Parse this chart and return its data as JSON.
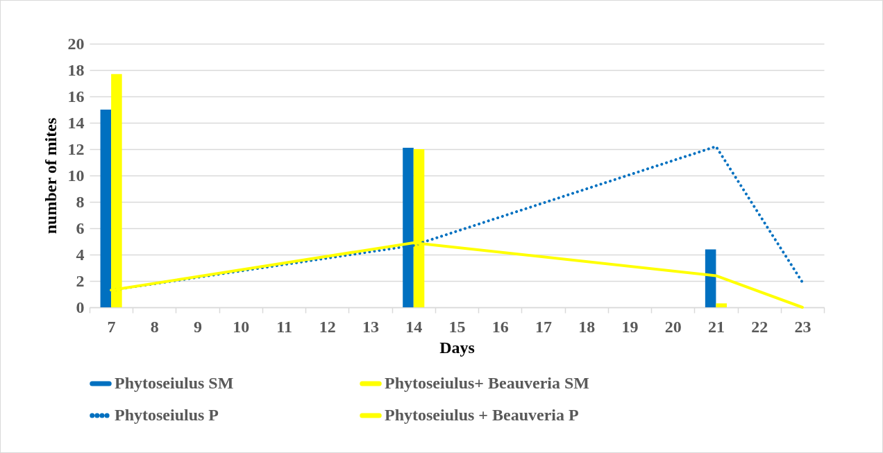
{
  "chart_data": {
    "type": "bar",
    "xlabel": "Days",
    "ylabel": "number of mites",
    "categories": [
      "7",
      "8",
      "9",
      "10",
      "11",
      "12",
      "13",
      "14",
      "15",
      "16",
      "17",
      "18",
      "19",
      "20",
      "21",
      "22",
      "23"
    ],
    "series": [
      {
        "name": "Phytoseiulus SM",
        "color": "#0070c0",
        "values": [
          15.0,
          null,
          null,
          null,
          null,
          null,
          null,
          12.1,
          null,
          null,
          null,
          null,
          null,
          null,
          4.4,
          null,
          null
        ]
      },
      {
        "name": "Phytoseiulus+ Beauveria SM",
        "color": "#ffff00",
        "values": [
          17.7,
          null,
          null,
          null,
          null,
          null,
          null,
          12.0,
          null,
          null,
          null,
          null,
          null,
          null,
          0.3,
          null,
          0
        ]
      },
      {
        "name": "Phytoseiulus P",
        "type": "line",
        "line_style": "dotted",
        "color": "#0070c0",
        "x": [
          "7",
          "14",
          "21",
          "23"
        ],
        "values": [
          1.3,
          4.7,
          12.2,
          1.9
        ]
      },
      {
        "name": "Phytoseiulus + Beauveria P",
        "type": "line",
        "line_style": "solid",
        "color": "#ffff00",
        "x": [
          "7",
          "14",
          "21",
          "23"
        ],
        "values": [
          1.3,
          4.9,
          2.4,
          0
        ]
      }
    ],
    "ylim": [
      0,
      20
    ],
    "yticks": [
      0,
      2,
      4,
      6,
      8,
      10,
      12,
      14,
      16,
      18,
      20
    ],
    "grid": "y",
    "legend": "bottom"
  }
}
